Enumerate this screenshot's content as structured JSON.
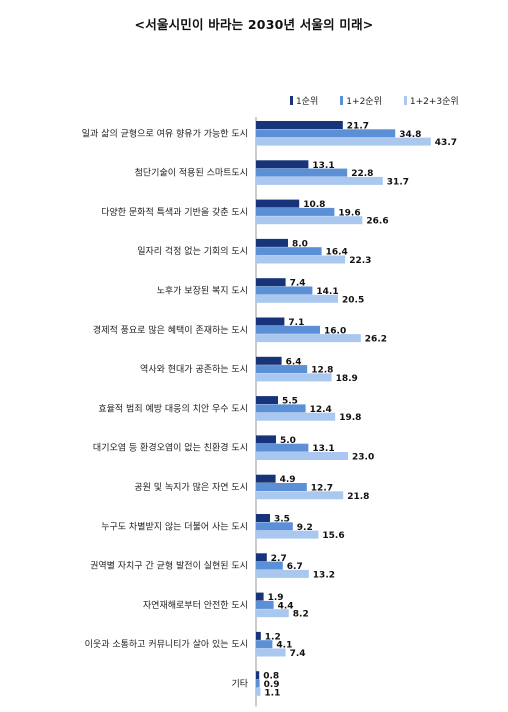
{
  "chart_data": {
    "type": "bar",
    "orientation": "horizontal",
    "title": "<서울시민이 바라는 2030년 서울의 미래>",
    "legend_position": "top-right",
    "grid": false,
    "xlim": [
      0,
      50
    ],
    "categories": [
      "일과 삶의 균형으로 여유 향유가 가능한 도시",
      "첨단기술이 적용된 스마트도시",
      "다양한 문화적 특색과 기반을 갖춘 도시",
      "일자리 걱정 없는 기회의 도시",
      "노후가 보장된 복지 도시",
      "경제적 풍요로 많은 혜택이 존재하는 도시",
      "역사와 현대가 공존하는 도시",
      "효율적 범죄 예방 대응의 치안 우수 도시",
      "대기오염 등 환경오염이 없는 친환경 도시",
      "공원 및 녹지가 많은 자연 도시",
      "누구도 차별받지 않는 더불어 사는 도시",
      "권역별 자치구 간 균형 발전이 실현된 도시",
      "자연재해로부터 안전한 도시",
      "이웃과 소통하고 커뮤니티가 살아 있는 도시",
      "기타"
    ],
    "series": [
      {
        "name": "1순위",
        "color": "#17337a",
        "values": [
          21.7,
          13.1,
          10.8,
          8.0,
          7.4,
          7.1,
          6.4,
          5.5,
          5.0,
          4.9,
          3.5,
          2.7,
          1.9,
          1.2,
          0.8
        ]
      },
      {
        "name": "1+2순위",
        "color": "#5b8fd6",
        "values": [
          34.8,
          22.8,
          19.6,
          16.4,
          14.1,
          16.0,
          12.8,
          12.4,
          13.1,
          12.7,
          9.2,
          6.7,
          4.4,
          4.1,
          0.9
        ]
      },
      {
        "name": "1+2+3순위",
        "color": "#aac8ef",
        "values": [
          43.7,
          31.7,
          26.6,
          22.3,
          20.5,
          26.2,
          18.9,
          19.8,
          23.0,
          21.8,
          15.6,
          13.2,
          8.2,
          7.4,
          1.1
        ]
      }
    ]
  }
}
